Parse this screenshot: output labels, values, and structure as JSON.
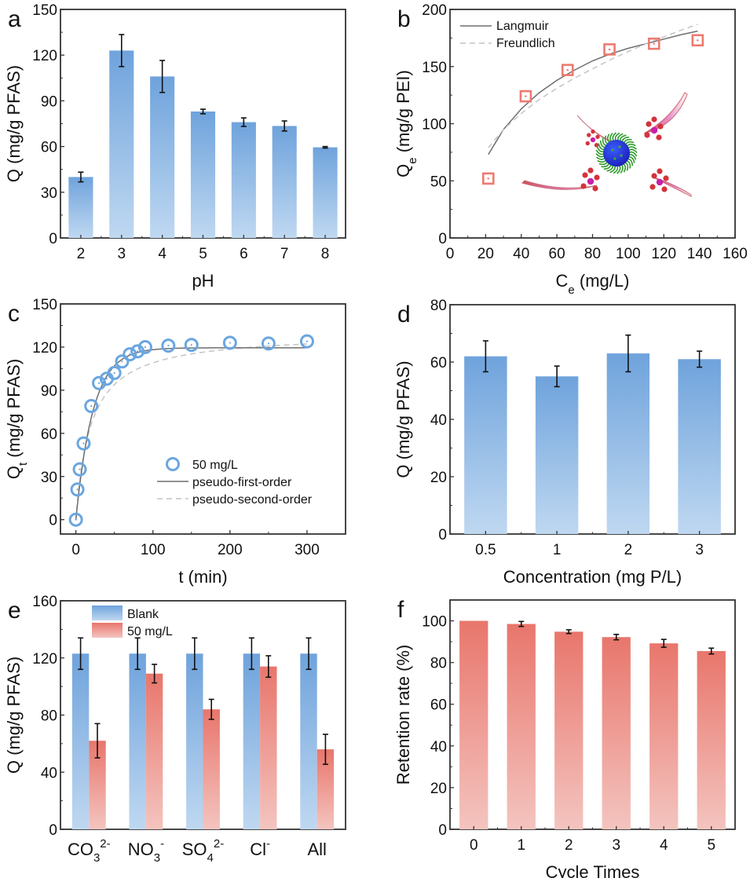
{
  "figure": {
    "colors": {
      "blue_top": "#6fa3dc",
      "blue_bottom": "#bfd8f1",
      "red_top": "#e8766c",
      "red_bottom": "#f4c4bf",
      "marker_blue": "#6aa6e0",
      "marker_red": "#ec7a70",
      "fit_solid": "#6e6e6e",
      "fit_dashed": "#c4c4c4",
      "axis": "#333333"
    }
  },
  "chart_data": [
    {
      "panel": "a",
      "type": "bar",
      "title": "",
      "xlabel": "pH",
      "ylabel": "Q (mg/g PFAS)",
      "categories": [
        "2",
        "3",
        "4",
        "5",
        "6",
        "7",
        "8"
      ],
      "values": [
        40,
        123,
        106,
        83,
        76,
        73.5,
        59.5
      ],
      "errors": [
        3.2,
        10.5,
        10.5,
        1.5,
        2.8,
        3.3,
        0.5
      ],
      "ylim": [
        0,
        150
      ],
      "yticks": [
        0,
        30,
        60,
        90,
        120,
        150
      ],
      "color": "blue"
    },
    {
      "panel": "b",
      "type": "scatter",
      "title": "",
      "xlabel": "C_e (mg/L)",
      "ylabel": "Q_e (mg/g PEI)",
      "xlim": [
        0,
        160
      ],
      "ylim": [
        0,
        200
      ],
      "xticks": [
        0,
        20,
        40,
        60,
        80,
        100,
        120,
        140,
        160
      ],
      "yticks": [
        0,
        50,
        100,
        150,
        200
      ],
      "series": [
        {
          "name": "data",
          "x": [
            21.5,
            42.5,
            66,
            89.5,
            114.5,
            139
          ],
          "y": [
            52,
            124,
            147,
            165,
            170,
            173
          ],
          "marker": "square"
        },
        {
          "name": "Langmuir",
          "style": "solid",
          "x": [
            21.5,
            30,
            40,
            50,
            60,
            70,
            80,
            90,
            100,
            110,
            120,
            130,
            139
          ],
          "y": [
            73,
            95,
            113,
            127,
            138,
            147,
            155,
            161,
            166,
            170,
            174,
            178,
            181
          ]
        },
        {
          "name": "Freundlich",
          "style": "dashed",
          "x": [
            21.5,
            30,
            40,
            50,
            60,
            70,
            80,
            90,
            100,
            110,
            120,
            130,
            139
          ],
          "y": [
            79,
            95,
            109,
            121,
            131,
            140,
            148,
            156,
            163,
            170,
            176,
            182,
            187
          ]
        }
      ],
      "legend": [
        "Langmuir",
        "Freundlich"
      ],
      "legend_position": "top-left",
      "annotation": "nanoparticle-with-PFAS-molecules illustration"
    },
    {
      "panel": "c",
      "type": "scatter",
      "title": "",
      "xlabel": "t (min)",
      "ylabel": "Q_t (mg/g PFAS)",
      "xlim": [
        -20,
        350
      ],
      "ylim": [
        -10,
        150
      ],
      "xticks": [
        0,
        100,
        200,
        300
      ],
      "yticks": [
        0,
        30,
        60,
        90,
        120,
        150
      ],
      "series": [
        {
          "name": "50 mg/L",
          "marker": "circle",
          "x": [
            0,
            2,
            5,
            10,
            20,
            30,
            40,
            50,
            60,
            70,
            80,
            90,
            120,
            150,
            200,
            250,
            300
          ],
          "y": [
            0,
            21,
            35,
            53,
            79,
            95,
            98,
            102,
            110,
            115,
            117,
            120,
            121,
            121.5,
            123,
            122.5,
            124
          ]
        },
        {
          "name": "pseudo-first-order",
          "style": "solid",
          "model": {
            "qe": 119.5,
            "k": 0.045
          }
        },
        {
          "name": "pseudo-second-order",
          "style": "dashed",
          "model": {
            "qe": 130,
            "k": 0.0004
          }
        }
      ],
      "legend": [
        "50 mg/L",
        "pseudo-first-order",
        "pseudo-second-order"
      ],
      "legend_position": "center-right"
    },
    {
      "panel": "d",
      "type": "bar",
      "title": "",
      "xlabel": "Concentration (mg P/L)",
      "ylabel": "Q (mg/g PFAS)",
      "categories": [
        "0.5",
        "1",
        "2",
        "3"
      ],
      "values": [
        62,
        55,
        63,
        61
      ],
      "errors": [
        5.4,
        3.6,
        6.4,
        2.8
      ],
      "ylim": [
        0,
        80
      ],
      "yticks": [
        0,
        20,
        40,
        60,
        80
      ],
      "color": "blue"
    },
    {
      "panel": "e",
      "type": "bar",
      "title": "",
      "xlabel": "",
      "ylabel": "Q (mg/g PFAS)",
      "categories": [
        {
          "base": "CO",
          "sub": "3",
          "sup": "2-"
        },
        {
          "base": "NO",
          "sub": "3",
          "sup": "-"
        },
        {
          "base": "SO",
          "sub": "4",
          "sup": "2-"
        },
        {
          "base": "Cl",
          "sub": "",
          "sup": "-"
        },
        {
          "base": "All",
          "sub": "",
          "sup": ""
        }
      ],
      "series": [
        {
          "name": "Blank",
          "color": "blue",
          "values": [
            123,
            123,
            123,
            123,
            123
          ],
          "errors": [
            11,
            11,
            11,
            11,
            11
          ]
        },
        {
          "name": "50 mg/L",
          "color": "red",
          "values": [
            62,
            109,
            84,
            114,
            56
          ],
          "errors": [
            12,
            6.5,
            7,
            7.5,
            10.5
          ]
        }
      ],
      "ylim": [
        0,
        160
      ],
      "yticks": [
        0,
        40,
        80,
        120,
        160
      ],
      "legend": [
        "Blank",
        "50 mg/L"
      ],
      "legend_position": "top-left"
    },
    {
      "panel": "f",
      "type": "bar",
      "title": "",
      "xlabel": "Cycle Times",
      "ylabel": "Retention rate (%)",
      "categories": [
        "0",
        "1",
        "2",
        "3",
        "4",
        "5"
      ],
      "values": [
        100,
        98.5,
        94.8,
        92.2,
        89.2,
        85.5
      ],
      "errors": [
        0,
        1.2,
        0.9,
        1.3,
        1.9,
        1.4
      ],
      "ylim": [
        0,
        110
      ],
      "yticks": [
        0,
        20,
        40,
        60,
        80,
        100
      ],
      "color": "red"
    }
  ]
}
